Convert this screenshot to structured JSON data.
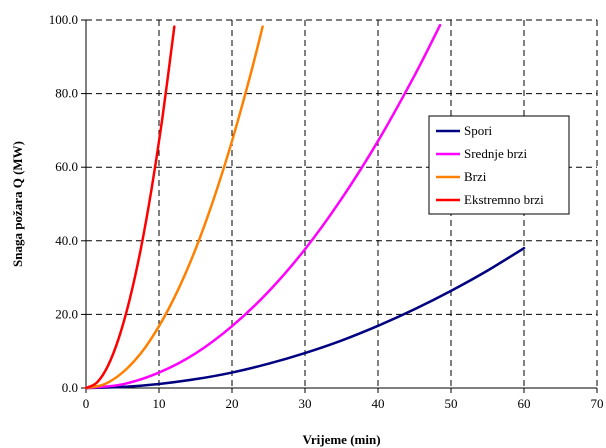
{
  "chart_data": {
    "type": "line",
    "title": "",
    "xlabel": "Vrijeme (min)",
    "ylabel": "Snaga požara Q (MW)",
    "xlim": [
      0,
      70
    ],
    "ylim": [
      0,
      100
    ],
    "x_ticks": [
      "0",
      "10",
      "20",
      "30",
      "40",
      "50",
      "60",
      "70"
    ],
    "y_ticks": [
      "0.0",
      "20.0",
      "40.0",
      "60.0",
      "80.0",
      "100.0"
    ],
    "grid": true,
    "legend_position": "right",
    "series": [
      {
        "name": "Spori",
        "color": "#000080",
        "x": [
          0,
          5,
          10,
          15,
          20,
          25,
          30,
          35,
          40,
          45,
          50,
          55,
          60
        ],
        "y": [
          0,
          0.3,
          1.1,
          2.4,
          4.2,
          6.6,
          9.5,
          12.9,
          16.9,
          21.4,
          26.4,
          31.9,
          38.0
        ]
      },
      {
        "name": "Srednje brzi",
        "color": "#ff00ff",
        "x": [
          0,
          5,
          10,
          15,
          20,
          25,
          30,
          35,
          40,
          45,
          48.5
        ],
        "y": [
          0,
          1.0,
          4.2,
          9.4,
          16.8,
          26.2,
          37.7,
          51.4,
          67.1,
          84.9,
          98.6
        ]
      },
      {
        "name": "Brzi",
        "color": "#ff8000",
        "x": [
          0,
          2.5,
          5,
          7.5,
          10,
          12.5,
          15,
          17.5,
          20,
          22.5,
          24.2
        ],
        "y": [
          0,
          1.0,
          4.2,
          9.4,
          16.8,
          26.2,
          37.7,
          51.4,
          67.1,
          84.9,
          98.2
        ]
      },
      {
        "name": "Ekstremno brzi",
        "color": "#ff0000",
        "x": [
          0,
          1.5,
          3,
          4.5,
          6,
          7.5,
          9,
          10.5,
          12.1
        ],
        "y": [
          0,
          1.5,
          6.0,
          13.6,
          24.2,
          37.7,
          54.3,
          73.9,
          98.2
        ]
      }
    ]
  }
}
